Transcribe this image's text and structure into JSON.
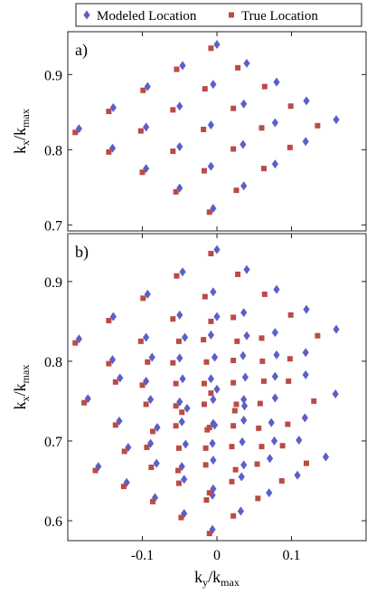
{
  "chart_data": [
    {
      "type": "scatter",
      "annotation": "a)",
      "ylabel": [
        "k",
        "x",
        "/k",
        "max"
      ],
      "xlim": [
        -0.2,
        0.2
      ],
      "ylim": [
        0.692,
        0.957
      ],
      "xticks": [
        -0.1,
        0,
        0.1
      ],
      "yticks": [
        0.7,
        0.8,
        0.9
      ],
      "xtick_labels": false,
      "legend": "top",
      "series": [
        {
          "name": "Modeled Location",
          "color": "#5b5fc7",
          "marker": "diamond",
          "x": [
            0,
            0.04,
            0.08,
            0.12,
            0.16,
            -0.046,
            -0.005,
            0.036,
            0.078,
            0.119,
            -0.093,
            -0.05,
            -0.008,
            0.035,
            0.078,
            -0.139,
            -0.095,
            -0.05,
            -0.008,
            0.036,
            -0.185,
            -0.14,
            -0.095,
            -0.05,
            -0.005
          ],
          "y": [
            0.94,
            0.915,
            0.89,
            0.865,
            0.84,
            0.912,
            0.887,
            0.861,
            0.836,
            0.811,
            0.884,
            0.858,
            0.833,
            0.807,
            0.781,
            0.856,
            0.83,
            0.804,
            0.778,
            0.752,
            0.828,
            0.802,
            0.775,
            0.749,
            0.722
          ]
        },
        {
          "name": "True Location",
          "color": "#bb4b45",
          "marker": "square",
          "x": [
            -0.008,
            0.028,
            0.064,
            0.099,
            0.135,
            -0.054,
            -0.016,
            0.022,
            0.06,
            0.098,
            -0.099,
            -0.059,
            -0.018,
            0.022,
            0.063,
            -0.145,
            -0.102,
            -0.059,
            -0.017,
            0.026,
            -0.19,
            -0.145,
            -0.1,
            -0.055,
            -0.01
          ],
          "y": [
            0.935,
            0.909,
            0.884,
            0.858,
            0.832,
            0.907,
            0.881,
            0.855,
            0.829,
            0.803,
            0.879,
            0.853,
            0.827,
            0.801,
            0.775,
            0.851,
            0.825,
            0.798,
            0.772,
            0.746,
            0.823,
            0.797,
            0.77,
            0.744,
            0.717
          ]
        }
      ]
    },
    {
      "type": "scatter",
      "annotation": "b)",
      "xlabel": [
        "k",
        "y",
        "/k",
        "max"
      ],
      "ylabel": [
        "k",
        "x",
        "/k",
        "max"
      ],
      "xlim": [
        -0.2,
        0.2
      ],
      "ylim": [
        0.575,
        0.96
      ],
      "xticks": [
        -0.1,
        0,
        0.1
      ],
      "yticks": [
        0.6,
        0.7,
        0.8,
        0.9
      ],
      "xtick_labels": true,
      "series": [
        {
          "color": "#5b5fc7",
          "marker": "diamond",
          "x": [
            0,
            0.04,
            0.08,
            0.12,
            0.16,
            -0.046,
            -0.005,
            0.036,
            0.078,
            0.119,
            -0.093,
            -0.05,
            -0.008,
            0.035,
            0.078,
            -0.139,
            -0.095,
            -0.05,
            -0.008,
            0.036,
            -0.185,
            -0.14,
            -0.095,
            -0.05,
            -0.005,
            0,
            0.04,
            0.08,
            0.119,
            0.159,
            -0.043,
            -0.003,
            0.038,
            0.078,
            0.118,
            -0.087,
            -0.046,
            -0.005,
            0.036,
            0.077,
            -0.13,
            -0.089,
            -0.047,
            -0.006,
            0.036,
            -0.173,
            -0.131,
            -0.089,
            -0.047,
            -0.005,
            0,
            0.037,
            0.073,
            0.11,
            0.146,
            -0.04,
            -0.003,
            0.034,
            0.071,
            0.108,
            -0.08,
            -0.042,
            -0.005,
            0.033,
            0.07,
            -0.119,
            -0.081,
            -0.044,
            -0.006,
            0.032,
            -0.159,
            -0.121,
            -0.083,
            -0.044,
            -0.006
          ],
          "y": [
            0.94,
            0.915,
            0.89,
            0.865,
            0.84,
            0.912,
            0.887,
            0.861,
            0.836,
            0.811,
            0.884,
            0.858,
            0.833,
            0.807,
            0.781,
            0.856,
            0.83,
            0.804,
            0.778,
            0.752,
            0.828,
            0.802,
            0.775,
            0.749,
            0.722,
            0.856,
            0.832,
            0.808,
            0.783,
            0.759,
            0.83,
            0.805,
            0.78,
            0.754,
            0.729,
            0.805,
            0.778,
            0.752,
            0.726,
            0.7,
            0.779,
            0.752,
            0.724,
            0.697,
            0.67,
            0.753,
            0.725,
            0.697,
            0.668,
            0.64,
            0.765,
            0.744,
            0.723,
            0.701,
            0.68,
            0.741,
            0.72,
            0.699,
            0.678,
            0.657,
            0.717,
            0.696,
            0.676,
            0.655,
            0.635,
            0.692,
            0.672,
            0.652,
            0.632,
            0.612,
            0.668,
            0.648,
            0.629,
            0.609,
            0.589
          ]
        },
        {
          "color": "#bb4b45",
          "marker": "square",
          "x": [
            -0.008,
            0.028,
            0.064,
            0.099,
            0.135,
            -0.054,
            -0.016,
            0.022,
            0.06,
            0.098,
            -0.099,
            -0.059,
            -0.018,
            0.022,
            0.063,
            -0.145,
            -0.102,
            -0.059,
            -0.017,
            0.026,
            -0.19,
            -0.145,
            -0.1,
            -0.055,
            -0.01,
            -0.008,
            0.027,
            0.061,
            0.096,
            0.13,
            -0.051,
            -0.014,
            0.022,
            0.058,
            0.095,
            -0.093,
            -0.055,
            -0.017,
            0.022,
            0.06,
            -0.136,
            -0.095,
            -0.055,
            -0.015,
            0.025,
            -0.178,
            -0.136,
            -0.094,
            -0.052,
            -0.01,
            -0.008,
            0.024,
            0.056,
            0.088,
            0.12,
            -0.047,
            -0.013,
            0.02,
            0.054,
            0.087,
            -0.086,
            -0.051,
            -0.015,
            0.02,
            0.055,
            -0.124,
            -0.088,
            -0.051,
            -0.014,
            0.022,
            -0.163,
            -0.125,
            -0.086,
            -0.048,
            -0.01
          ],
          "y": [
            0.935,
            0.909,
            0.884,
            0.858,
            0.832,
            0.907,
            0.881,
            0.855,
            0.829,
            0.803,
            0.879,
            0.853,
            0.827,
            0.801,
            0.775,
            0.851,
            0.825,
            0.798,
            0.772,
            0.746,
            0.823,
            0.797,
            0.77,
            0.744,
            0.717,
            0.85,
            0.825,
            0.8,
            0.775,
            0.75,
            0.825,
            0.799,
            0.773,
            0.747,
            0.721,
            0.799,
            0.772,
            0.746,
            0.719,
            0.693,
            0.774,
            0.746,
            0.719,
            0.691,
            0.664,
            0.748,
            0.72,
            0.692,
            0.663,
            0.635,
            0.76,
            0.738,
            0.716,
            0.694,
            0.672,
            0.736,
            0.714,
            0.693,
            0.671,
            0.65,
            0.712,
            0.691,
            0.67,
            0.649,
            0.628,
            0.687,
            0.667,
            0.647,
            0.626,
            0.606,
            0.663,
            0.643,
            0.624,
            0.604,
            0.584
          ]
        }
      ]
    }
  ]
}
